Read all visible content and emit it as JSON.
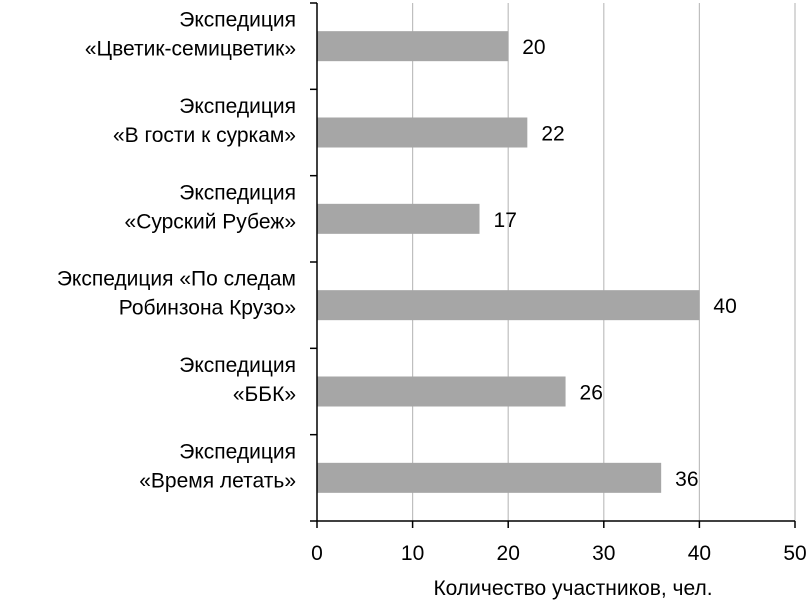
{
  "chart_data": {
    "type": "bar",
    "orientation": "horizontal",
    "categories": [
      [
        "Экспедиция",
        "«Цветик-семицветик»"
      ],
      [
        "Экспедиция",
        "«В гости к суркам»"
      ],
      [
        "Экспедиция",
        "«Сурский Рубеж»"
      ],
      [
        "Экспедиция «По следам",
        "Робинзона Крузо»"
      ],
      [
        "Экспедиция",
        "«ББК»"
      ],
      [
        "Экспедиция",
        "«Время летать»"
      ]
    ],
    "values": [
      20,
      22,
      17,
      40,
      26,
      36
    ],
    "data_labels": [
      "20",
      "22",
      "17",
      "40",
      "26",
      "36"
    ],
    "xlabel": "Количество участников, чел.",
    "ylabel": "",
    "xlim": [
      0,
      50
    ],
    "x_ticks": [
      0,
      10,
      20,
      30,
      40,
      50
    ],
    "x_tick_labels": [
      "0",
      "10",
      "20",
      "30",
      "40",
      "50"
    ],
    "grid": "vertical",
    "legend": "none",
    "colors": {
      "bar": "#a6a6a6",
      "grid": "#bfbfbf",
      "axis": "#000000",
      "text": "#000000"
    }
  }
}
